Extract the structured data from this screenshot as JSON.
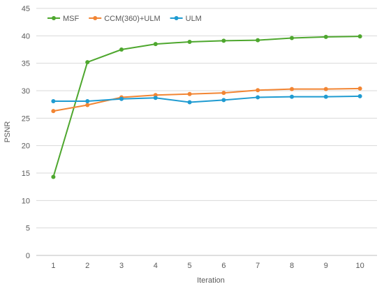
{
  "chart_data": {
    "type": "line",
    "title": "",
    "xlabel": "Iteration",
    "ylabel": "PSNR",
    "x": [
      1,
      2,
      3,
      4,
      5,
      6,
      7,
      8,
      9,
      10
    ],
    "ylim": [
      0,
      45
    ],
    "yticks": [
      0,
      5,
      10,
      15,
      20,
      25,
      30,
      35,
      40,
      45
    ],
    "grid": "horizontal",
    "legend_position": "top-left",
    "series": [
      {
        "name": "MSF",
        "color": "#4ea72e",
        "values": [
          14.3,
          35.2,
          37.5,
          38.5,
          38.9,
          39.1,
          39.2,
          39.6,
          39.8,
          39.9
        ]
      },
      {
        "name": "CCM(360)+ULM",
        "color": "#f28533",
        "values": [
          26.3,
          27.4,
          28.8,
          29.2,
          29.4,
          29.6,
          30.1,
          30.3,
          30.3,
          30.4
        ]
      },
      {
        "name": "ULM",
        "color": "#1f9bd1",
        "values": [
          28.1,
          28.1,
          28.5,
          28.7,
          27.9,
          28.3,
          28.8,
          28.9,
          28.9,
          29.0
        ]
      }
    ]
  }
}
